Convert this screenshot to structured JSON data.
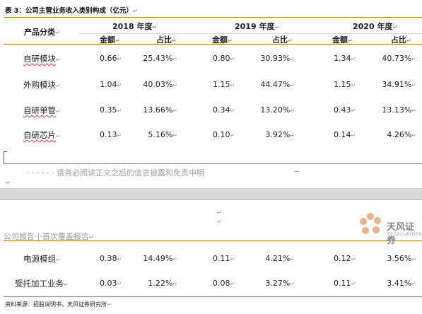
{
  "title": "表 3：公司主营业务收入类别构成（亿元）",
  "para_mark": "↵",
  "table": {
    "product_header": "产品分类",
    "years": [
      "2018 年度",
      "2019 年度",
      "2020 年度"
    ],
    "sub_headers": {
      "amount": "金额",
      "share": "占比"
    },
    "rows": [
      {
        "name": "自研模块",
        "v2018": "0.66",
        "p2018": "25.43%",
        "v2019": "0.80",
        "p2019": "30.93%",
        "v2020": "1.34",
        "p2020": "40.73%"
      },
      {
        "name": "外购模块",
        "v2018": "1.04",
        "p2018": "40.03%",
        "v2019": "1.15",
        "p2019": "44.47%",
        "v2020": "1.15",
        "p2020": "34.91%"
      },
      {
        "name": "自研单管",
        "v2018": "0.35",
        "p2018": "13.66%",
        "v2019": "0.34",
        "p2019": "13.20%",
        "v2020": "0.43",
        "p2020": "13.13%"
      },
      {
        "name": "自研芯片",
        "v2018": "0.13",
        "p2018": "5.16%",
        "v2019": "0.10",
        "p2019": "3.92%",
        "v2020": "0.14",
        "p2020": "4.26%"
      }
    ],
    "rows_after_break": [
      {
        "name": "电源模组",
        "v2018": "0.38",
        "p2018": "14.49%",
        "v2019": "0.11",
        "p2019": "4.21%",
        "v2020": "0.12",
        "p2020": "3.56%"
      },
      {
        "name": "受托加工业务",
        "v2018": "0.03",
        "p2018": "1.22%",
        "v2019": "0.08",
        "p2019": "3.27%",
        "v2020": "0.11",
        "p2020": "3.41%"
      }
    ]
  },
  "disclaimer": "· · · · · · 请务必阅读正文之后的信息披露和免责申明",
  "disclaimer_arrow": "→",
  "report_tag": "公司报告·|·首次覆盖报告",
  "logo": {
    "cn": "天风证券",
    "en": "TF SECURITIES"
  },
  "source": "资料来源：招股说明书，天风证券研究所",
  "colors": {
    "rule": "#c87f1a",
    "page_break": "#d7d7d7",
    "logo_petal": "#e8a57a"
  }
}
